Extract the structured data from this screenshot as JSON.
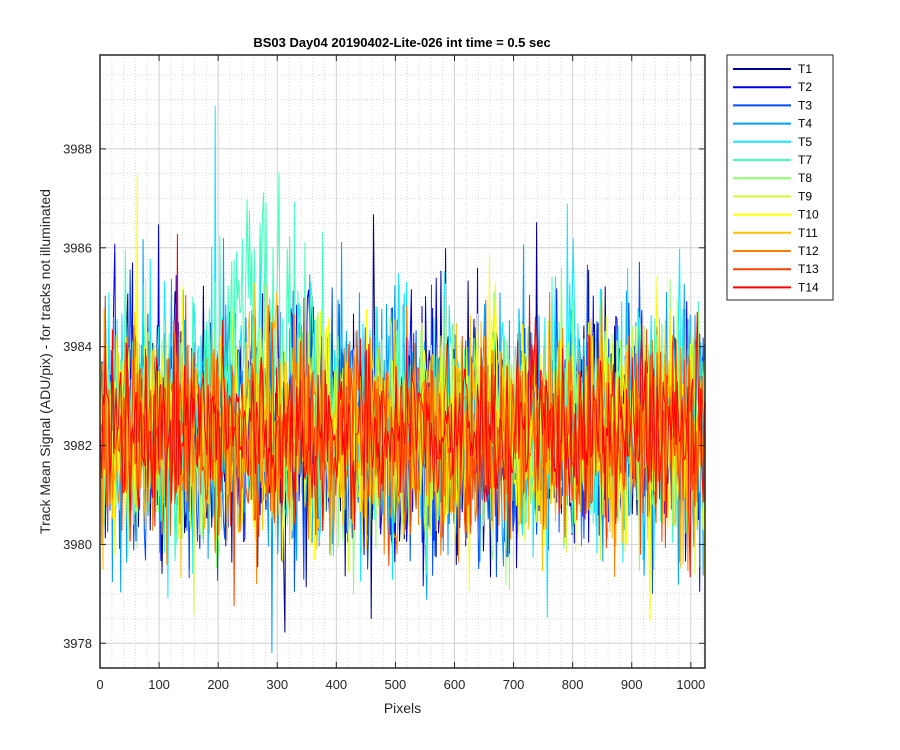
{
  "chart_data": {
    "type": "line",
    "title": "BS03 Day04 20190402-Lite-026 int time = 0.5 sec",
    "xlabel": "Pixels",
    "ylabel": "Track Mean Signal (ADU/pix) - for tracks not illuminated",
    "xlim": [
      0,
      1024
    ],
    "ylim": [
      3977.5,
      3989.9
    ],
    "xticks": [
      0,
      100,
      200,
      300,
      400,
      500,
      600,
      700,
      800,
      900,
      1000
    ],
    "yticks": [
      3978,
      3980,
      3982,
      3984,
      3986,
      3988
    ],
    "grid": true,
    "minor_grid": true,
    "legend_position": "outside-top-right",
    "series": [
      {
        "name": "T1",
        "color": "#00008f",
        "mean": 3982.2,
        "noise": 1.5
      },
      {
        "name": "T2",
        "color": "#0000ef",
        "mean": 3982.3,
        "noise": 1.5
      },
      {
        "name": "T3",
        "color": "#0050ff",
        "mean": 3982.3,
        "noise": 1.5
      },
      {
        "name": "T4",
        "color": "#00a0ff",
        "mean": 3982.4,
        "noise": 1.6
      },
      {
        "name": "T5",
        "color": "#10e8ff",
        "mean": 3982.5,
        "noise": 1.6
      },
      {
        "name": "T7",
        "color": "#40ffbf",
        "mean": 3982.6,
        "noise": 1.4,
        "bump_center": 270,
        "bump_amp": 3.0,
        "bump_width": 60
      },
      {
        "name": "T8",
        "color": "#8fff70",
        "mean": 3982.3,
        "noise": 1.3
      },
      {
        "name": "T9",
        "color": "#cfff30",
        "mean": 3982.3,
        "noise": 1.3
      },
      {
        "name": "T10",
        "color": "#ffff00",
        "mean": 3982.3,
        "noise": 1.3
      },
      {
        "name": "T11",
        "color": "#ffbf00",
        "mean": 3982.3,
        "noise": 1.3
      },
      {
        "name": "T12",
        "color": "#ff8000",
        "mean": 3982.2,
        "noise": 1.3
      },
      {
        "name": "T13",
        "color": "#ff4000",
        "mean": 3982.2,
        "noise": 1.2
      },
      {
        "name": "T14",
        "color": "#ff0000",
        "mean": 3982.3,
        "noise": 1.0
      }
    ]
  }
}
